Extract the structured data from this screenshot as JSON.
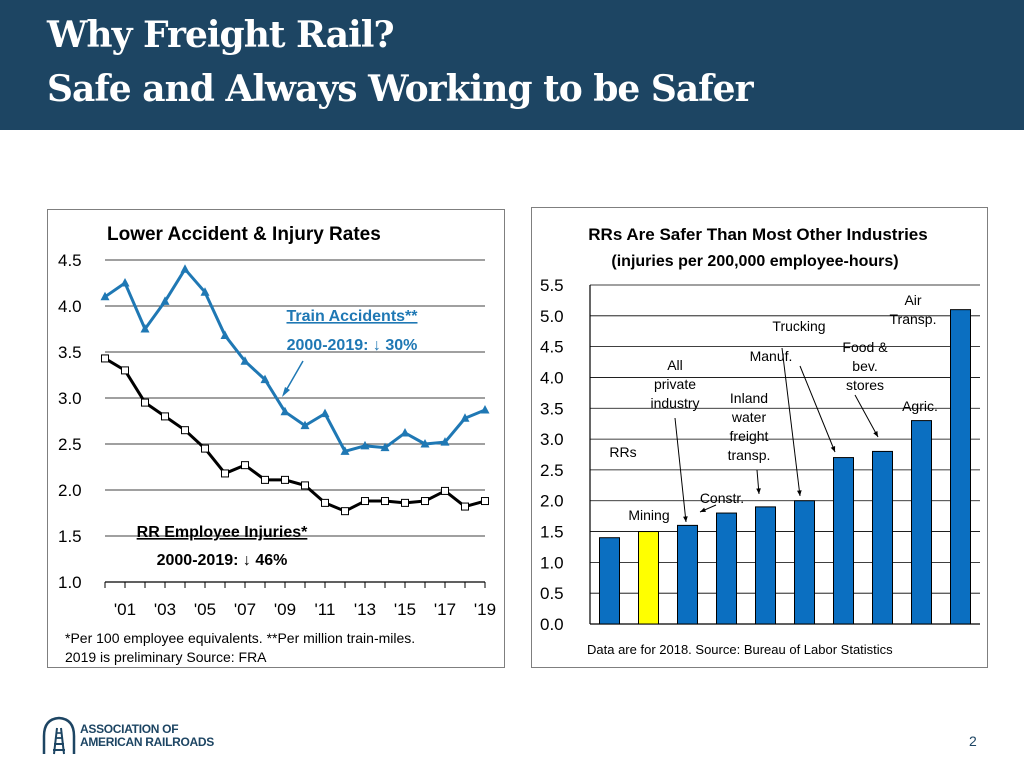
{
  "slide": {
    "title_line1": "Why Freight Rail?",
    "title_line2": "Safe and Always Working to be Safer",
    "page_number": "2",
    "logo_line1": "ASSOCIATION OF",
    "logo_line2": "AMERICAN RAILROADS",
    "colors": {
      "header": "#1d4563",
      "line_series": "#1f78b4",
      "bar_default": "#0b6fc1",
      "bar_highlight": "#ffff00",
      "accent_text": "#1f78b4"
    }
  },
  "left_chart": {
    "footnote1": "*Per 100 employee equivalents.   **Per million train-miles.",
    "footnote2": "2019 is preliminary        Source: FRA",
    "annotations": {
      "train_accidents": "Train Accidents**",
      "train_period": "2000-2019: ",
      "train_arrow": "↓",
      "train_change": "30%",
      "employee_injuries": "RR Employee Injuries*",
      "employee_period": "2000-2019: ",
      "employee_arrow": "↓",
      "employee_change": "46%"
    }
  },
  "right_chart": {
    "footnote": "Data are for 2018.    Source: Bureau of Labor Statistics"
  },
  "chart_data": [
    {
      "type": "line",
      "title": "Lower Accident & Injury Rates",
      "x": [
        2000,
        2001,
        2002,
        2003,
        2004,
        2005,
        2006,
        2007,
        2008,
        2009,
        2010,
        2011,
        2012,
        2013,
        2014,
        2015,
        2016,
        2017,
        2018,
        2019
      ],
      "x_tick_labels": [
        "'01",
        "'03",
        "'05",
        "'07",
        "'09",
        "'11",
        "'13",
        "'15",
        "'17",
        "'19"
      ],
      "y_tick_labels": [
        "4.5",
        "4.0",
        "3.5",
        "3.0",
        "2.5",
        "2.0",
        "1.5",
        "1.0"
      ],
      "ylim": [
        1.0,
        4.5
      ],
      "grid": true,
      "series": [
        {
          "name": "Train Accidents**",
          "color": "#1f78b4",
          "marker": "triangle",
          "values": [
            4.1,
            4.25,
            3.75,
            4.05,
            4.4,
            4.15,
            3.68,
            3.4,
            3.2,
            2.85,
            2.7,
            2.83,
            2.42,
            2.48,
            2.46,
            2.62,
            2.5,
            2.52,
            2.78,
            2.87
          ]
        },
        {
          "name": "RR Employee Injuries*",
          "color": "#000000",
          "marker": "square",
          "values": [
            3.43,
            3.3,
            2.95,
            2.8,
            2.65,
            2.45,
            2.18,
            2.27,
            2.11,
            2.11,
            2.05,
            1.86,
            1.77,
            1.88,
            1.88,
            1.86,
            1.88,
            1.99,
            1.82,
            1.88
          ]
        }
      ]
    },
    {
      "type": "bar",
      "title": "RRs Are Safer Than Most Other Industries",
      "subtitle": "(injuries per 200,000 employee-hours)",
      "categories": [
        "RRs",
        "Mining",
        "All private industry",
        "Constr.",
        "Inland water freight transp.",
        "Trucking",
        "Manuf.",
        "Food & bev. stores",
        "Agric.",
        "Air Transp."
      ],
      "values": [
        1.4,
        1.5,
        1.6,
        1.8,
        1.9,
        2.0,
        2.7,
        2.8,
        3.3,
        5.1
      ],
      "highlight": "Mining",
      "ylim": [
        0.0,
        5.5
      ],
      "y_tick_labels": [
        "5.5",
        "5.0",
        "4.5",
        "4.0",
        "3.5",
        "3.0",
        "2.5",
        "2.0",
        "1.5",
        "1.0",
        "0.5",
        "0.0"
      ],
      "grid": true,
      "bar_labels": [
        {
          "text": [
            "RRs"
          ]
        },
        {
          "text": [
            "Mining"
          ]
        },
        {
          "text": [
            "All",
            "private",
            "industry"
          ]
        },
        {
          "text": [
            "Constr."
          ]
        },
        {
          "text": [
            "Inland",
            "water",
            "freight",
            "transp."
          ]
        },
        {
          "text": [
            "Trucking"
          ]
        },
        {
          "text": [
            "Manuf."
          ]
        },
        {
          "text": [
            "Food &",
            "bev.",
            "stores"
          ]
        },
        {
          "text": [
            "Agric."
          ]
        },
        {
          "text": [
            "Air",
            "Transp."
          ]
        }
      ]
    }
  ]
}
